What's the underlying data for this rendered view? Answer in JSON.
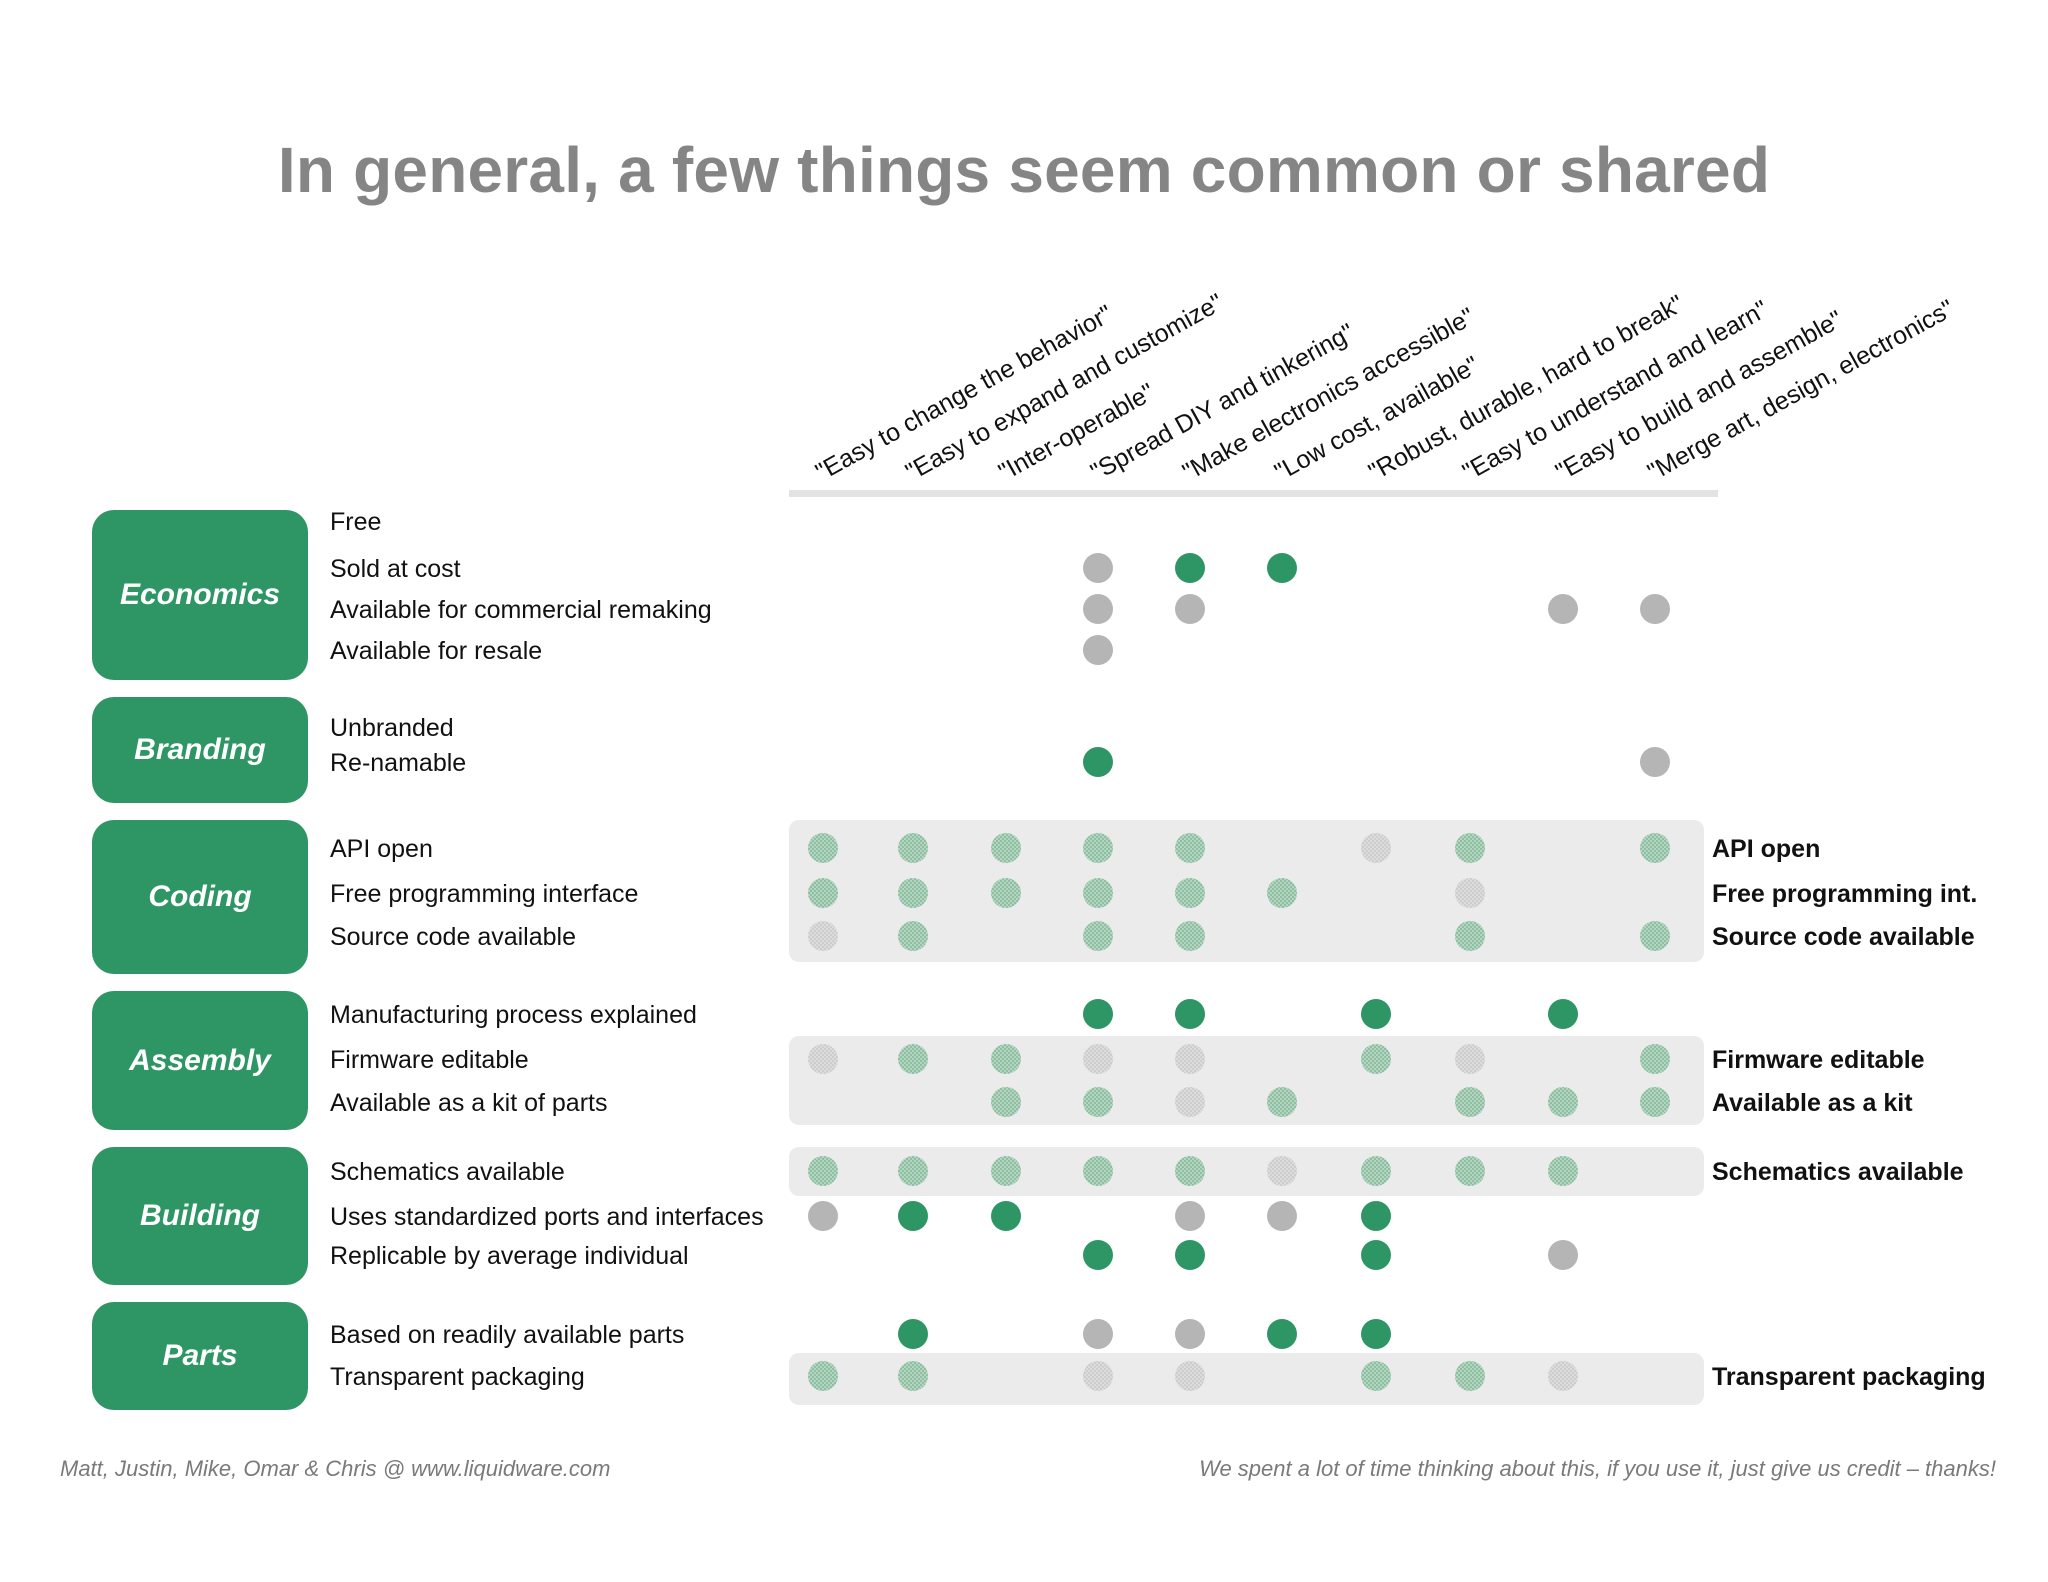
{
  "title": "In general, a few things seem common or shared",
  "colors": {
    "green": "#2e9665",
    "gray": "#b5b5b5",
    "band": "#ebebeb",
    "pale_green": "#a9cdb6",
    "pale_gray": "#d8d8d8"
  },
  "columns": [
    "\"Easy to change the behavior\"",
    "\"Easy to expand and customize\"",
    "\"Inter-operable\"",
    "\"Spread DIY and tinkering\"",
    "\"Make electronics accessible\"",
    "\"Low cost, available\"",
    "\"Robust, durable, hard to break\"",
    "\"Easy to understand and learn\"",
    "\"Easy to build and assemble\"",
    "\"Merge art, design, electronics\""
  ],
  "groups": [
    {
      "name": "Economics",
      "rows": [
        {
          "label": "Free",
          "right_label": "",
          "dots": [
            null,
            null,
            null,
            null,
            null,
            null,
            null,
            null,
            null,
            null
          ]
        },
        {
          "label": "Sold at cost",
          "right_label": "",
          "dots": [
            null,
            null,
            null,
            "gray",
            "green",
            "green",
            null,
            null,
            null,
            null
          ]
        },
        {
          "label": "Available for commercial remaking",
          "right_label": "",
          "dots": [
            null,
            null,
            null,
            "gray",
            "gray",
            null,
            null,
            null,
            "gray",
            "gray"
          ]
        },
        {
          "label": "Available for resale",
          "right_label": "",
          "dots": [
            null,
            null,
            null,
            "gray",
            null,
            null,
            null,
            null,
            null,
            null
          ]
        }
      ]
    },
    {
      "name": "Branding",
      "rows": [
        {
          "label": "Unbranded",
          "right_label": "",
          "dots": [
            null,
            null,
            null,
            null,
            null,
            null,
            null,
            null,
            null,
            null
          ]
        },
        {
          "label": "Re-namable",
          "right_label": "",
          "dots": [
            null,
            null,
            null,
            "green",
            null,
            null,
            null,
            null,
            null,
            "gray"
          ]
        }
      ]
    },
    {
      "name": "Coding",
      "rows": [
        {
          "label": "API open",
          "right_label": "API open",
          "dots": [
            "pale-green",
            "pale-green",
            "pale-green",
            "pale-green",
            "pale-green",
            null,
            "pale-gray",
            "pale-green",
            null,
            "pale-green"
          ]
        },
        {
          "label": "Free programming interface",
          "right_label": "Free programming int.",
          "dots": [
            "pale-green",
            "pale-green",
            "pale-green",
            "pale-green",
            "pale-green",
            "pale-green",
            null,
            "pale-gray",
            null,
            null
          ]
        },
        {
          "label": "Source code available",
          "right_label": "Source code available",
          "dots": [
            "pale-gray",
            "pale-green",
            null,
            "pale-green",
            "pale-green",
            null,
            null,
            "pale-green",
            null,
            "pale-green"
          ]
        }
      ]
    },
    {
      "name": "Assembly",
      "rows": [
        {
          "label": "Manufacturing process explained",
          "right_label": "",
          "dots": [
            null,
            null,
            null,
            "green",
            "green",
            null,
            "green",
            null,
            "green",
            null
          ]
        },
        {
          "label": "Firmware editable",
          "right_label": "Firmware editable",
          "dots": [
            "pale-gray",
            "pale-green",
            "pale-green",
            "pale-gray",
            "pale-gray",
            null,
            "pale-green",
            "pale-gray",
            null,
            "pale-green"
          ]
        },
        {
          "label": "Available as a kit of parts",
          "right_label": "Available as a kit",
          "dots": [
            null,
            null,
            "pale-green",
            "pale-green",
            "pale-gray",
            "pale-green",
            null,
            "pale-green",
            "pale-green",
            "pale-green"
          ]
        }
      ]
    },
    {
      "name": "Building",
      "rows": [
        {
          "label": "Schematics available",
          "right_label": "Schematics available",
          "dots": [
            "pale-green",
            "pale-green",
            "pale-green",
            "pale-green",
            "pale-green",
            "pale-gray",
            "pale-green",
            "pale-green",
            "pale-green",
            null
          ]
        },
        {
          "label": "Uses standardized ports and interfaces",
          "right_label": "",
          "dots": [
            "gray",
            "green",
            "green",
            null,
            "gray",
            "gray",
            "green",
            null,
            null,
            null
          ]
        },
        {
          "label": "Replicable by average individual",
          "right_label": "",
          "dots": [
            null,
            null,
            null,
            "green",
            "green",
            null,
            "green",
            null,
            "gray",
            null
          ]
        }
      ]
    },
    {
      "name": "Parts",
      "rows": [
        {
          "label": "Based on readily available parts",
          "right_label": "",
          "dots": [
            null,
            "green",
            null,
            "gray",
            "gray",
            "green",
            "green",
            null,
            null,
            null
          ]
        },
        {
          "label": "Transparent packaging",
          "right_label": "Transparent packaging",
          "dots": [
            "pale-green",
            "pale-green",
            null,
            "pale-gray",
            "pale-gray",
            null,
            "pale-green",
            "pale-green",
            "pale-gray",
            null
          ]
        }
      ]
    }
  ],
  "footer": {
    "left": "Matt, Justin, Mike, Omar & Chris @ www.liquidware.com",
    "right": "We spent a lot of time thinking about this, if you use it, just give us credit – thanks!"
  }
}
